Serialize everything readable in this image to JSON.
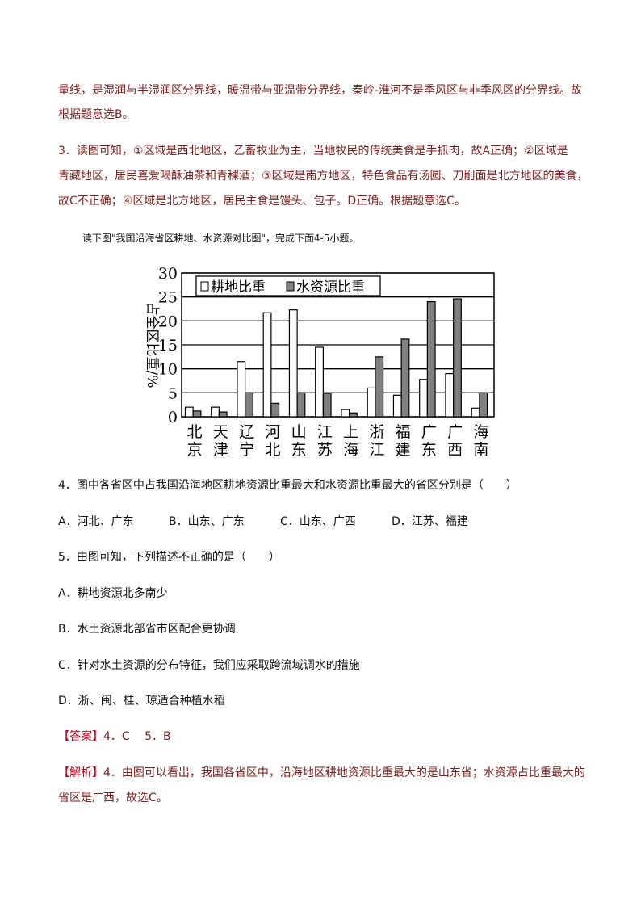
{
  "analysis_prev": {
    "line1": "量线，是湿润与半湿润区分界线，暖温带与亚温带分界线，秦岭-淮河不是季风区与非季风区的分界线。故",
    "line2": "根据题意选B。"
  },
  "q3_analysis": {
    "line1": "3．读图可知，①区域是西北地区，乙畜牧业为主，当地牧民的传统美食是手抓肉，故A正确；②区域是",
    "line2": "青藏地区，居民喜爱喝酥油茶和青稞酒；③区域是南方地区，特色食品有汤圆、刀削面是北方地区的美食，",
    "line3": "故C不正确；④区域是北方地区，居民主食是馒头、包子。D正确。根据题意选C。"
  },
  "intro": "读下图\"我国沿海省区耕地、水资源对比图\"，完成下面4-5小题。",
  "chart_data": {
    "type": "bar",
    "title": "",
    "ylabel": "占全区比重/%",
    "xlabel": "",
    "ylim": [
      0,
      30
    ],
    "yticks": [
      "0",
      "5",
      "10",
      "15",
      "20",
      "25",
      "30"
    ],
    "grid": true,
    "legend_position": "top",
    "categories": [
      [
        "北",
        "京"
      ],
      [
        "天",
        "津"
      ],
      [
        "辽",
        "宁"
      ],
      [
        "河",
        "北"
      ],
      [
        "山",
        "东"
      ],
      [
        "江",
        "苏"
      ],
      [
        "上",
        "海"
      ],
      [
        "浙",
        "江"
      ],
      [
        "福",
        "建"
      ],
      [
        "广",
        "东"
      ],
      [
        "广",
        "西"
      ],
      [
        "海",
        "南"
      ]
    ],
    "series": [
      {
        "name": "耕地比重",
        "color": "#ffffff",
        "values": [
          2,
          2,
          11.5,
          21.7,
          22.3,
          14.5,
          1.5,
          6,
          4.5,
          7.8,
          9,
          1.8
        ]
      },
      {
        "name": "水资源比重",
        "color": "#808080",
        "values": [
          1.2,
          1,
          5,
          2.8,
          5,
          4.9,
          0.8,
          12.5,
          16.2,
          24,
          24.6,
          5
        ]
      }
    ]
  },
  "q4": {
    "stem": "4．图中各省区中占我国沿海地区耕地资源比重最大和水资源比重最大的省区分别是（　　）",
    "options": [
      "A．河北、广东",
      "B．山东、广东",
      "C．山东、广西",
      "D．江苏、福建"
    ]
  },
  "q5": {
    "stem": "5．由图可知，下列描述不正确的是（　　）",
    "options": [
      "A．耕地资源北多南少",
      "B．水土资源北部省市区配合更协调",
      "C．针对水土资源的分布特征，我们应采取跨流域调水的措施",
      "D．浙、闽、桂、琼适合种植水稻"
    ]
  },
  "answer": {
    "tag": "【答案】",
    "text": "4．C　 5．B"
  },
  "explanation": {
    "tag": "【解析】",
    "line1": "4．由图可以看出，我国各省区中，沿海地区耕地资源比重最大的是山东省；水资源占比重最大的",
    "line2": "省区是广西，故选C。"
  }
}
